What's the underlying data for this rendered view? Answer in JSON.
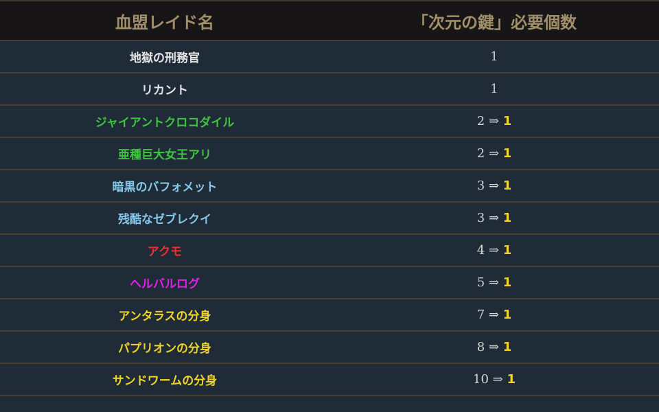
{
  "headers": {
    "name": "血盟レイド名",
    "keys": "「次元の鍵」必要個数"
  },
  "arrow": "⇒",
  "rows": [
    {
      "name": "地獄の刑務官",
      "color": "#e6e6e6",
      "old": "1",
      "new": null
    },
    {
      "name": "リカント",
      "color": "#e6e6e6",
      "old": "1",
      "new": null
    },
    {
      "name": "ジャイアントクロコダイル",
      "color": "#3fc53f",
      "old": "2",
      "new": "1"
    },
    {
      "name": "亜種巨大女王アリ",
      "color": "#3fc53f",
      "old": "2",
      "new": "1"
    },
    {
      "name": "暗黒のバフォメット",
      "color": "#86c8ea",
      "old": "3",
      "new": "1"
    },
    {
      "name": "残酷なゼブレクイ",
      "color": "#86c8ea",
      "old": "3",
      "new": "1"
    },
    {
      "name": "アクモ",
      "color": "#f03030",
      "old": "4",
      "new": "1"
    },
    {
      "name": "ヘルバルログ",
      "color": "#e020e8",
      "old": "5",
      "new": "1"
    },
    {
      "name": "アンタラスの分身",
      "color": "#f2d32a",
      "old": "7",
      "new": "1"
    },
    {
      "name": "パプリオンの分身",
      "color": "#f2d32a",
      "old": "8",
      "new": "1"
    },
    {
      "name": "サンドワームの分身",
      "color": "#f2d32a",
      "old": "10",
      "new": "1"
    }
  ]
}
